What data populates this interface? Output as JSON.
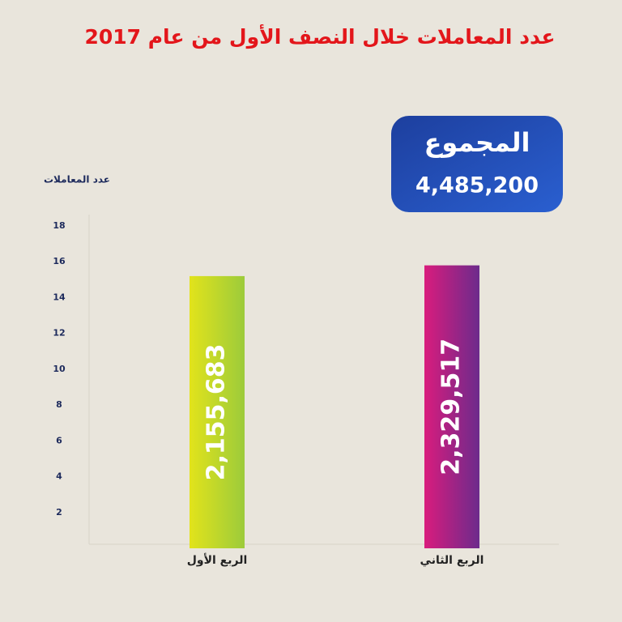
{
  "chart_data": {
    "type": "bar",
    "title": "عدد المعاملات خلال النصف الأول من عام 2017",
    "y_label": "عدد المعاملات",
    "total_label": "المجموع",
    "total_value": "4,485,200",
    "categories": [
      "الربع الأول",
      "الربع الثاني"
    ],
    "values": [
      15.2,
      15.8
    ],
    "bar_texts": [
      "2,155,683",
      "2,329,517"
    ],
    "colors": [
      [
        "#e2e31b",
        "#9ccb3b"
      ],
      [
        "#d91c7d",
        "#6c2b8c"
      ]
    ],
    "ylim": [
      0,
      18
    ],
    "yticks": [
      2,
      4,
      6,
      8,
      10,
      12,
      14,
      16,
      18
    ]
  }
}
